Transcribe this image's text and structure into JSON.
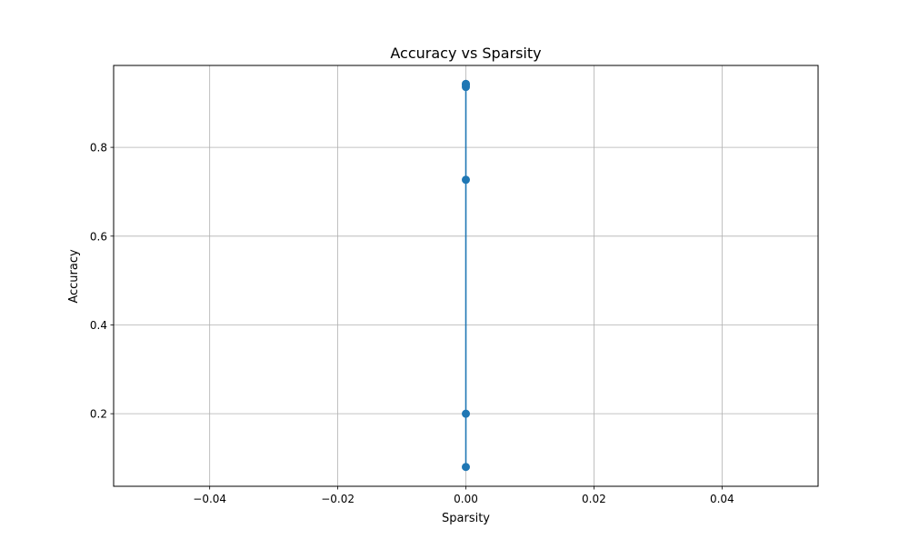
{
  "chart_data": {
    "type": "line",
    "title": "Accuracy vs Sparsity",
    "xlabel": "Sparsity",
    "ylabel": "Accuracy",
    "xlim": [
      -0.055,
      0.055
    ],
    "ylim": [
      0.0365,
      0.9845
    ],
    "xticks": [
      -0.04,
      -0.02,
      0.0,
      0.02,
      0.04
    ],
    "xtick_labels": [
      "−0.04",
      "−0.02",
      "0.00",
      "0.02",
      "0.04"
    ],
    "yticks": [
      0.2,
      0.4,
      0.6,
      0.8
    ],
    "ytick_labels": [
      "0.2",
      "0.4",
      "0.6",
      "0.8"
    ],
    "grid": true,
    "series": [
      {
        "color": "#1f77b4",
        "marker": "circle",
        "x": [
          0.0,
          0.0,
          0.0,
          0.0,
          0.0,
          0.0
        ],
        "y": [
          0.08,
          0.2,
          0.727,
          0.936,
          0.941,
          0.943
        ]
      }
    ]
  }
}
